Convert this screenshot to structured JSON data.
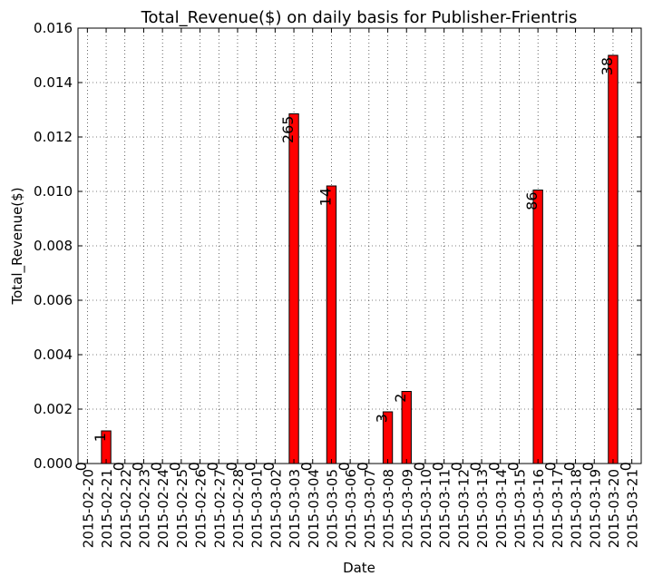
{
  "chart_data": {
    "type": "bar",
    "title": "Total_Revenue($) on daily basis for Publisher-Frientris",
    "xlabel": "Date",
    "ylabel": "Total_Revenue($)",
    "ylim": [
      0,
      0.016
    ],
    "yticks": [
      "0.000",
      "0.002",
      "0.004",
      "0.006",
      "0.008",
      "0.010",
      "0.012",
      "0.014",
      "0.016"
    ],
    "grid": true,
    "bar_color": "#ff0000",
    "categories": [
      "2015-02-20",
      "2015-02-21",
      "2015-02-22",
      "2015-02-23",
      "2015-02-24",
      "2015-02-25",
      "2015-02-26",
      "2015-02-27",
      "2015-02-28",
      "2015-03-01",
      "2015-03-02",
      "2015-03-03",
      "2015-03-04",
      "2015-03-05",
      "2015-03-06",
      "2015-03-07",
      "2015-03-08",
      "2015-03-09",
      "2015-03-10",
      "2015-03-11",
      "2015-03-12",
      "2015-03-13",
      "2015-03-14",
      "2015-03-15",
      "2015-03-16",
      "2015-03-17",
      "2015-03-18",
      "2015-03-19",
      "2015-03-20",
      "2015-03-21"
    ],
    "values": [
      0,
      0.0012,
      0,
      0,
      0,
      0,
      0,
      0,
      0,
      0,
      0,
      0.01285,
      0,
      0.0102,
      0,
      0,
      0.0019,
      0.00265,
      0,
      0,
      0,
      0,
      0,
      0,
      0.01005,
      0,
      0,
      0,
      0.015,
      0
    ],
    "annotations": [
      "0",
      "1",
      "0",
      "0",
      "0",
      "0",
      "0",
      "0",
      "0",
      "0",
      "0",
      "265",
      "0",
      "14",
      "0",
      "0",
      "3",
      "2",
      "0",
      "0",
      "0",
      "0",
      "0",
      "0",
      "86",
      "0",
      "0",
      "0",
      "38",
      "0"
    ]
  }
}
